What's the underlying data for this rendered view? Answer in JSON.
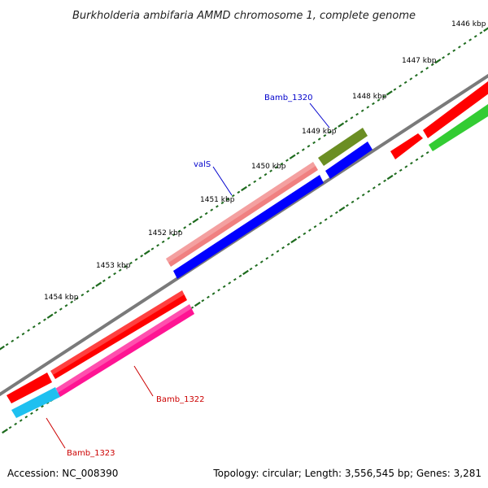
{
  "title": "Burkholderia ambifaria AMMD chromosome 1, complete genome",
  "ticks": [
    "1446 kbp",
    "1447 kbp",
    "1448 kbp",
    "1449 kbp",
    "1450 kbp",
    "1451 kbp",
    "1452 kbp",
    "1453 kbp",
    "1454 kbp"
  ],
  "gene_labels": [
    {
      "name": "Bamb_1320",
      "color": "#0000cc"
    },
    {
      "name": "valS",
      "color": "#0000cc"
    },
    {
      "name": "Bamb_1322",
      "color": "#cc0000"
    },
    {
      "name": "Bamb_1323",
      "color": "#cc0000"
    }
  ],
  "colors": {
    "backbone": "#7a7a7a",
    "tick_green": "#1e6b1e",
    "red": "#ff0000",
    "salmon": "#f08080",
    "blue": "#0000ff",
    "olive": "#6b8e23",
    "green": "#33cc33",
    "pink": "#ff1493",
    "cyan": "#1ec0f0"
  },
  "footer": {
    "accession": "Accession: NC_008390",
    "stats": "Topology: circular; Length: 3,556,545 bp; Genes: 3,281"
  }
}
